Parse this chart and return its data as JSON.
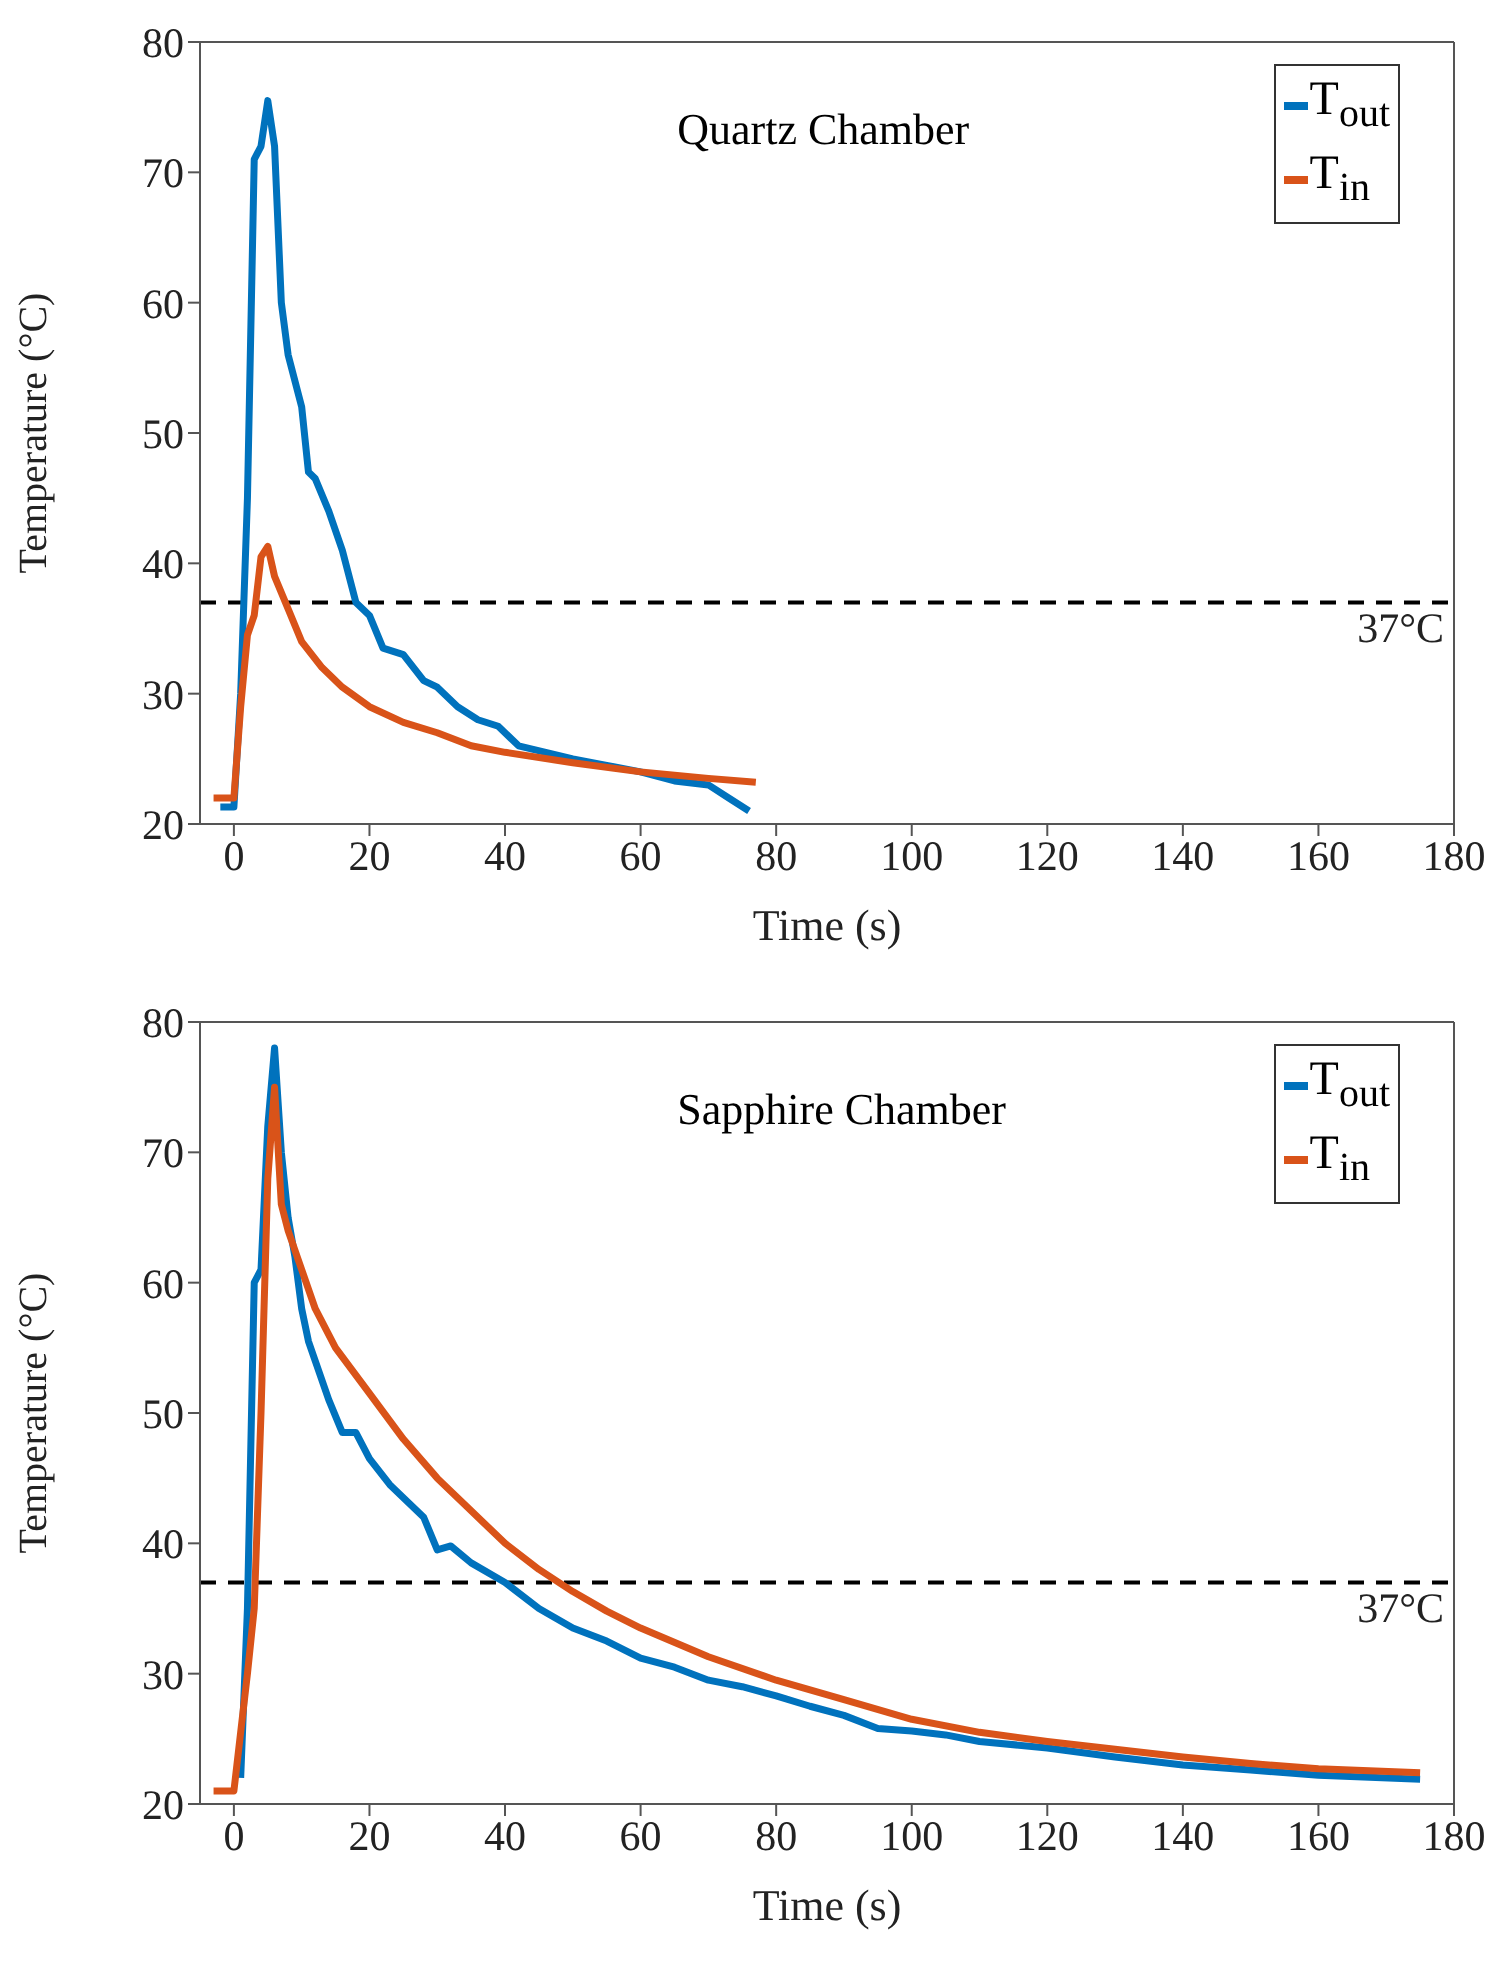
{
  "chart_data": [
    {
      "type": "line",
      "title": "Quartz Chamber",
      "xlabel": "Time (s)",
      "ylabel": "Temperature (°C)",
      "xlim": [
        -5,
        180
      ],
      "xticks": [
        0,
        20,
        40,
        60,
        80,
        100,
        120,
        140,
        160,
        180
      ],
      "ylim": [
        20,
        80
      ],
      "yticks": [
        20,
        30,
        40,
        50,
        60,
        70,
        80
      ],
      "legend": "top right",
      "ref_lines": [
        {
          "axis": "y",
          "value": 37,
          "label": "37°C",
          "color": "#000000",
          "line_style": "dashed"
        }
      ],
      "series": [
        {
          "name": "T$_{out}$",
          "color": "#0072bd",
          "x": [
            -2,
            0,
            1,
            2,
            3,
            4,
            5,
            6,
            7,
            8,
            10,
            11,
            12,
            14,
            16,
            18,
            20,
            22,
            25,
            28,
            30,
            33,
            36,
            39,
            42,
            46,
            50,
            55,
            60,
            65,
            70,
            73,
            76
          ],
          "values": [
            21.3,
            21.3,
            30,
            45,
            71,
            72,
            75.5,
            72,
            60,
            56,
            52,
            47,
            46.5,
            44,
            41,
            37,
            36,
            33.5,
            33,
            31,
            30.5,
            29,
            28,
            27.5,
            26,
            25.5,
            25,
            24.5,
            24,
            23.3,
            23,
            22,
            21
          ]
        },
        {
          "name": "T$_{in}$",
          "color": "#d95319",
          "x": [
            -3,
            -1,
            0,
            1,
            2,
            3,
            4,
            5,
            6,
            8,
            10,
            13,
            16,
            20,
            25,
            30,
            35,
            40,
            50,
            60,
            70,
            77
          ],
          "values": [
            22,
            22,
            22,
            29,
            34.5,
            36,
            40.5,
            41.3,
            39,
            36.5,
            34,
            32,
            30.5,
            29,
            27.8,
            27,
            26,
            25.5,
            24.7,
            24,
            23.5,
            23.2
          ]
        }
      ]
    },
    {
      "type": "line",
      "title": "Sapphire Chamber",
      "xlabel": "Time (s)",
      "ylabel": "Temperature (°C)",
      "xlim": [
        -5,
        180
      ],
      "xticks": [
        0,
        20,
        40,
        60,
        80,
        100,
        120,
        140,
        160,
        180
      ],
      "ylim": [
        20,
        80
      ],
      "yticks": [
        20,
        30,
        40,
        50,
        60,
        70,
        80
      ],
      "legend": "top right",
      "ref_lines": [
        {
          "axis": "y",
          "value": 37,
          "label": "37°C",
          "color": "#000000",
          "line_style": "dashed"
        }
      ],
      "series": [
        {
          "name": "T$_{out}$",
          "color": "#0072bd",
          "x": [
            1,
            2,
            3,
            4,
            5,
            6,
            7,
            8,
            9,
            10,
            11,
            12,
            14,
            16,
            18,
            20,
            23,
            26,
            28,
            30,
            32,
            35,
            40,
            45,
            50,
            55,
            60,
            65,
            70,
            75,
            80,
            85,
            90,
            95,
            100,
            105,
            110,
            120,
            130,
            140,
            150,
            160,
            175
          ],
          "values": [
            22,
            35,
            60,
            61,
            72,
            78,
            70,
            65,
            62,
            58,
            55.5,
            54,
            51,
            48.5,
            48.5,
            46.5,
            44.5,
            43,
            42,
            39.5,
            39.8,
            38.5,
            37,
            35,
            33.5,
            32.5,
            31.2,
            30.5,
            29.5,
            29,
            28.3,
            27.5,
            26.8,
            25.8,
            25.6,
            25.3,
            24.8,
            24.3,
            23.6,
            23,
            22.6,
            22.2,
            21.9
          ]
        },
        {
          "name": "T$_{in}$",
          "color": "#d95319",
          "x": [
            -3,
            -1,
            0,
            2,
            3,
            4,
            5,
            6,
            7,
            8,
            10,
            12,
            15,
            20,
            25,
            30,
            35,
            40,
            45,
            50,
            55,
            60,
            70,
            80,
            90,
            100,
            110,
            120,
            130,
            140,
            150,
            160,
            175
          ],
          "values": [
            21,
            21,
            21,
            30,
            35,
            50,
            68,
            75,
            66,
            64,
            61,
            58,
            55,
            51.5,
            48,
            45,
            42.5,
            40,
            38,
            36.3,
            34.8,
            33.5,
            31.3,
            29.5,
            28,
            26.5,
            25.5,
            24.8,
            24.2,
            23.6,
            23.1,
            22.7,
            22.4
          ]
        }
      ]
    }
  ]
}
